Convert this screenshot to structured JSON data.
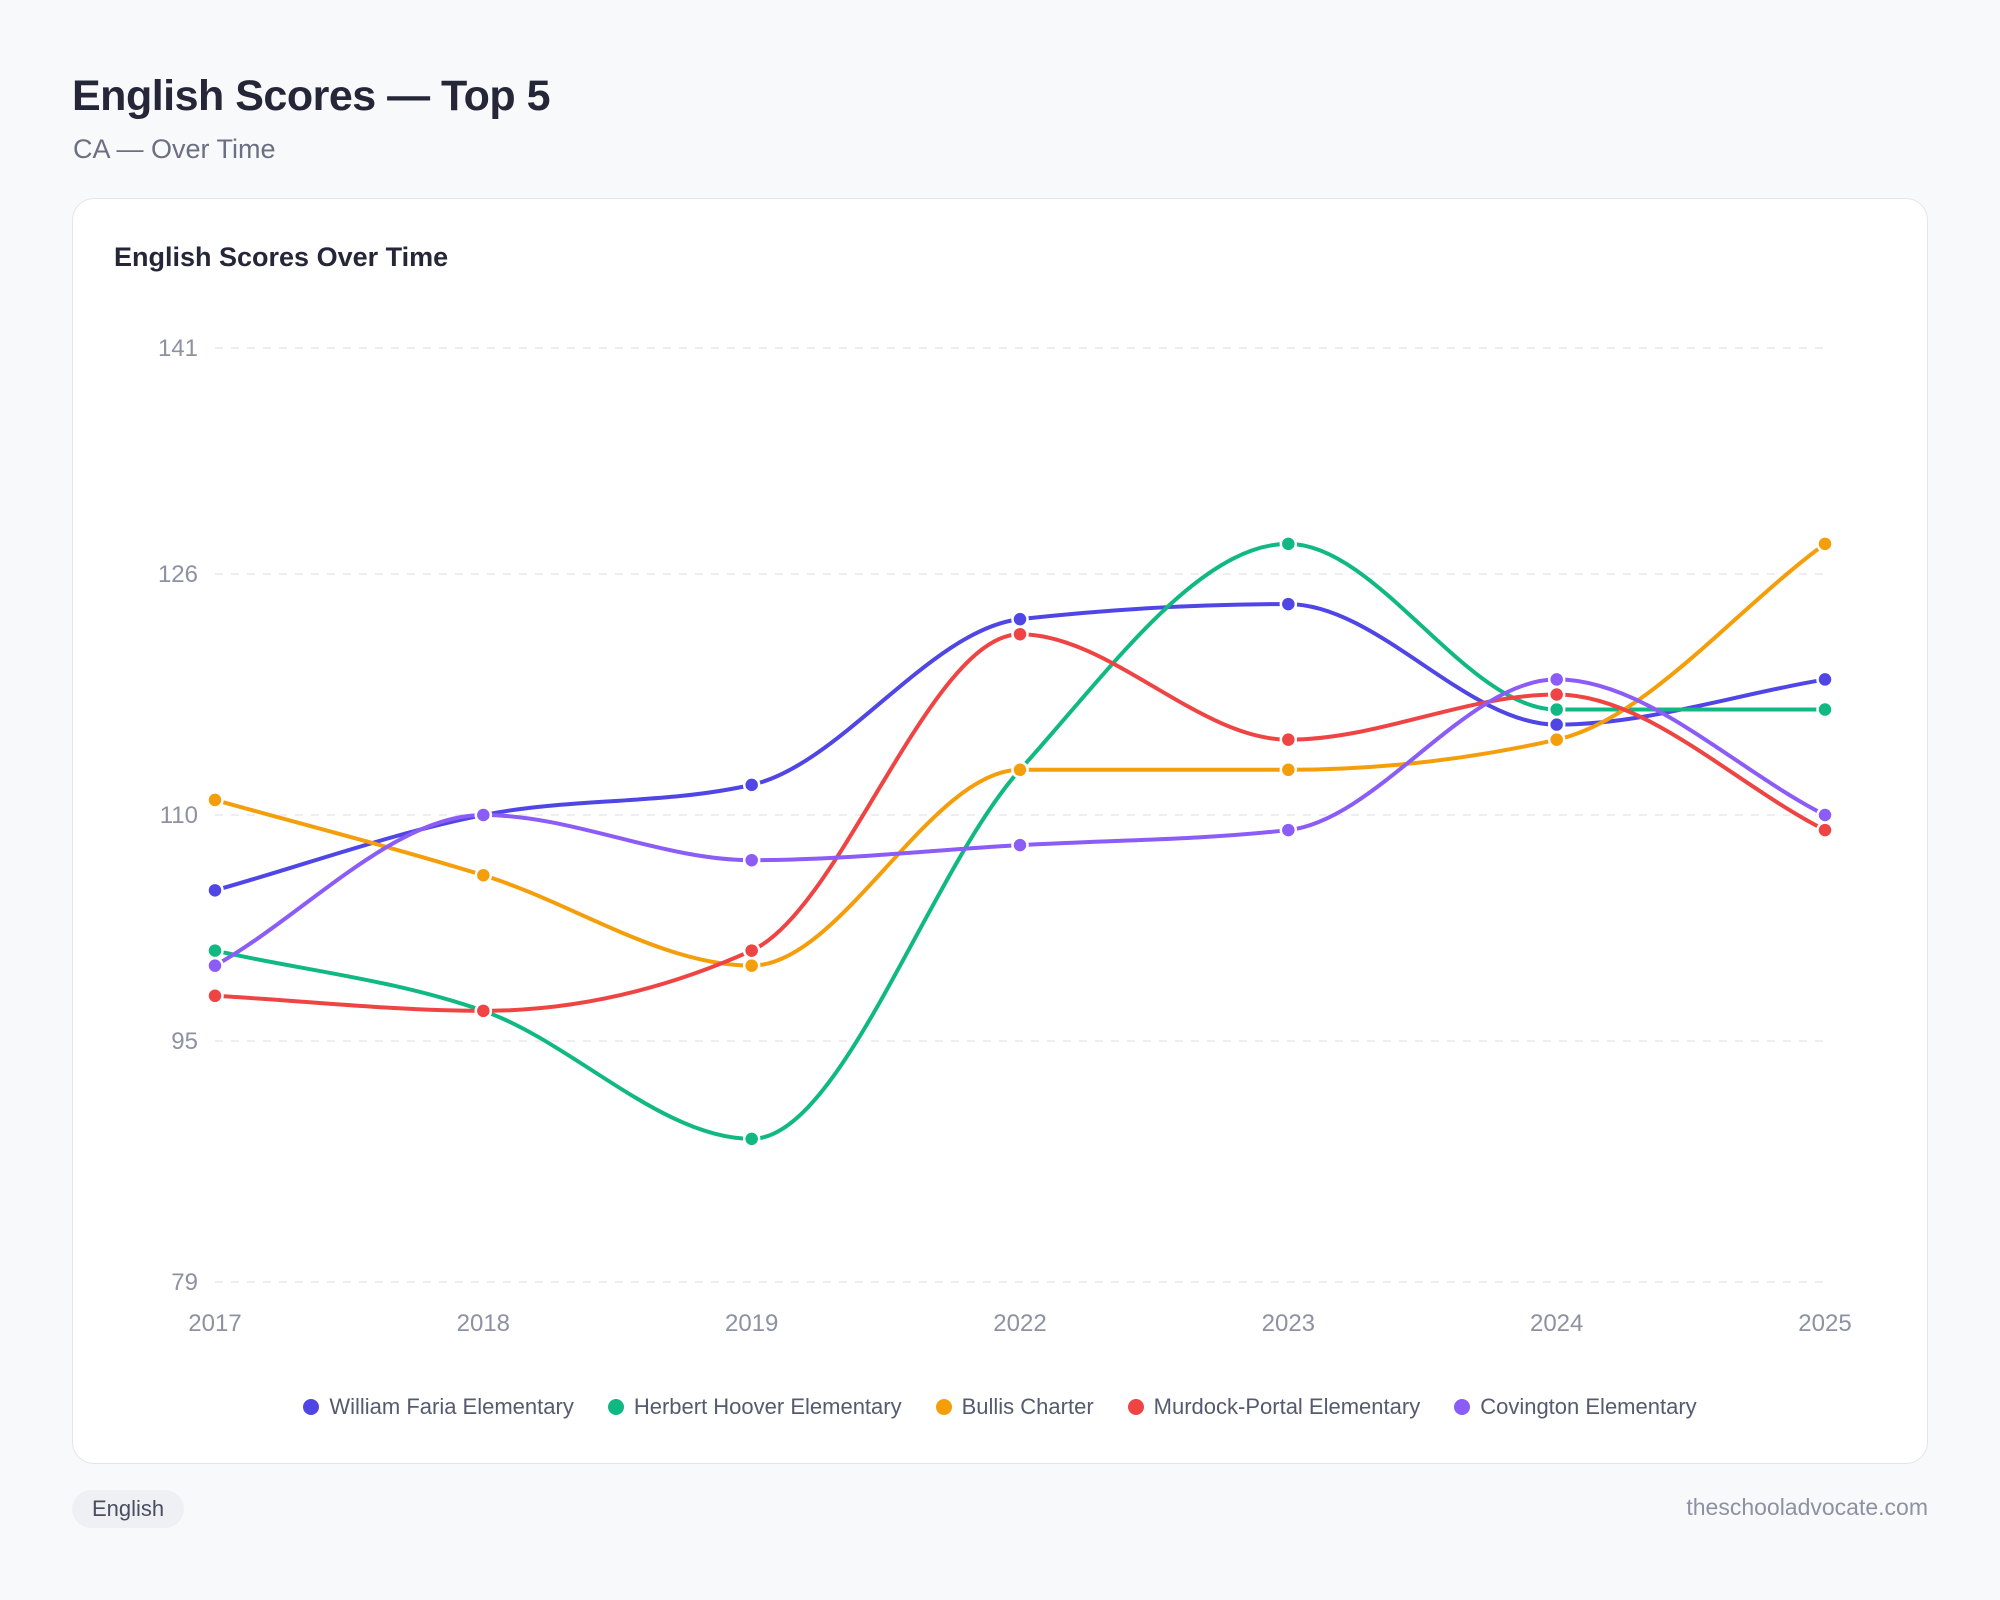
{
  "header": {
    "title": "English Scores — Top 5",
    "subtitle": "CA — Over Time"
  },
  "card": {
    "title": "English Scores Over Time"
  },
  "footer": {
    "tag": "English",
    "site": "theschooladvocate.com"
  },
  "chart_data": {
    "type": "line",
    "title": "English Scores Over Time",
    "xlabel": "",
    "ylabel": "",
    "x": [
      "2017",
      "2018",
      "2019",
      "2022",
      "2023",
      "2024",
      "2025"
    ],
    "y_ticks": [
      79,
      95,
      110,
      126,
      141
    ],
    "ylim": [
      79,
      141
    ],
    "grid": true,
    "legend_position": "bottom-center",
    "series": [
      {
        "name": "William Faria Elementary",
        "color": "#4f46e5",
        "values": [
          105,
          110,
          112,
          123,
          124,
          116,
          119
        ]
      },
      {
        "name": "Herbert Hoover Elementary",
        "color": "#10b981",
        "values": [
          101,
          97,
          88.5,
          113,
          128,
          117,
          117
        ]
      },
      {
        "name": "Bullis Charter",
        "color": "#f59e0b",
        "values": [
          111,
          106,
          100,
          113,
          113,
          115,
          128
        ]
      },
      {
        "name": "Murdock-Portal Elementary",
        "color": "#ef4444",
        "values": [
          98,
          97,
          101,
          122,
          115,
          118,
          109
        ]
      },
      {
        "name": "Covington Elementary",
        "color": "#8b5cf6",
        "values": [
          100,
          110,
          107,
          108,
          109,
          119,
          110
        ]
      }
    ]
  }
}
